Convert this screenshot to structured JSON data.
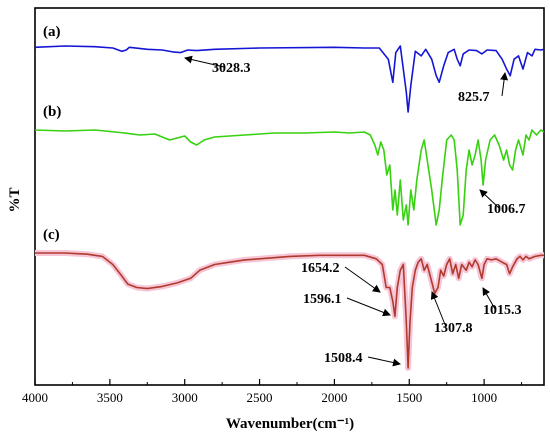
{
  "chart_data": {
    "type": "line",
    "xlabel": "Wavenumber(cm⁻¹)",
    "ylabel": "%T",
    "xlim": [
      4000,
      600
    ],
    "x_reversed": true,
    "x_ticks": [
      4000,
      3500,
      3000,
      2500,
      2000,
      1500,
      1000
    ],
    "grid": false,
    "legend": "none",
    "series": [
      {
        "label": "(a)",
        "color": "#1515d6",
        "annotations": [
          {
            "text": "3028.3",
            "x": 3028.3
          },
          {
            "text": "825.7",
            "x": 825.7
          }
        ],
        "points": [
          [
            4000,
            0.02
          ],
          [
            3800,
            0.0
          ],
          [
            3600,
            0.01
          ],
          [
            3480,
            0.03
          ],
          [
            3420,
            0.08
          ],
          [
            3390,
            0.06
          ],
          [
            3370,
            0.02
          ],
          [
            3250,
            0.05
          ],
          [
            3150,
            0.06
          ],
          [
            3080,
            0.09
          ],
          [
            3028,
            0.1
          ],
          [
            2980,
            0.06
          ],
          [
            2920,
            0.07
          ],
          [
            2800,
            0.05
          ],
          [
            2500,
            0.03
          ],
          [
            2000,
            0.02
          ],
          [
            1800,
            0.03
          ],
          [
            1700,
            0.03
          ],
          [
            1640,
            0.2
          ],
          [
            1610,
            0.55
          ],
          [
            1590,
            0.1
          ],
          [
            1560,
            0.0
          ],
          [
            1520,
            0.7
          ],
          [
            1508,
            1.0
          ],
          [
            1490,
            0.6
          ],
          [
            1460,
            0.08
          ],
          [
            1420,
            0.15
          ],
          [
            1390,
            0.05
          ],
          [
            1350,
            0.2
          ],
          [
            1320,
            0.45
          ],
          [
            1300,
            0.55
          ],
          [
            1270,
            0.3
          ],
          [
            1240,
            0.1
          ],
          [
            1200,
            0.05
          ],
          [
            1180,
            0.2
          ],
          [
            1160,
            0.3
          ],
          [
            1140,
            0.12
          ],
          [
            1100,
            0.06
          ],
          [
            1050,
            0.07
          ],
          [
            1015,
            0.12
          ],
          [
            980,
            0.06
          ],
          [
            920,
            0.07
          ],
          [
            880,
            0.2
          ],
          [
            850,
            0.35
          ],
          [
            826,
            0.45
          ],
          [
            800,
            0.2
          ],
          [
            770,
            0.15
          ],
          [
            740,
            0.35
          ],
          [
            710,
            0.1
          ],
          [
            680,
            0.15
          ],
          [
            660,
            0.05
          ],
          [
            620,
            0.06
          ],
          [
            600,
            0.05
          ]
        ]
      },
      {
        "label": "(b)",
        "color": "#36d10f",
        "annotations": [
          {
            "text": "1006.7",
            "x": 1006.7
          }
        ],
        "points": [
          [
            4000,
            0.0
          ],
          [
            3800,
            0.01
          ],
          [
            3600,
            0.0
          ],
          [
            3400,
            0.03
          ],
          [
            3300,
            0.05
          ],
          [
            3200,
            0.04
          ],
          [
            3100,
            0.1
          ],
          [
            3050,
            0.08
          ],
          [
            3000,
            0.06
          ],
          [
            2960,
            0.12
          ],
          [
            2920,
            0.15
          ],
          [
            2870,
            0.1
          ],
          [
            2800,
            0.07
          ],
          [
            2700,
            0.06
          ],
          [
            2600,
            0.05
          ],
          [
            2500,
            0.04
          ],
          [
            2400,
            0.03
          ],
          [
            2200,
            0.03
          ],
          [
            2000,
            0.02
          ],
          [
            1900,
            0.03
          ],
          [
            1800,
            0.02
          ],
          [
            1760,
            0.05
          ],
          [
            1730,
            0.15
          ],
          [
            1710,
            0.25
          ],
          [
            1690,
            0.12
          ],
          [
            1670,
            0.2
          ],
          [
            1650,
            0.45
          ],
          [
            1630,
            0.35
          ],
          [
            1610,
            0.8
          ],
          [
            1595,
            0.6
          ],
          [
            1580,
            0.85
          ],
          [
            1560,
            0.5
          ],
          [
            1540,
            0.9
          ],
          [
            1520,
            0.75
          ],
          [
            1508,
            0.95
          ],
          [
            1490,
            0.6
          ],
          [
            1470,
            0.8
          ],
          [
            1450,
            0.5
          ],
          [
            1420,
            0.2
          ],
          [
            1400,
            0.1
          ],
          [
            1380,
            0.3
          ],
          [
            1350,
            0.6
          ],
          [
            1320,
            0.95
          ],
          [
            1300,
            0.8
          ],
          [
            1280,
            0.5
          ],
          [
            1250,
            0.1
          ],
          [
            1220,
            0.05
          ],
          [
            1200,
            0.1
          ],
          [
            1180,
            0.4
          ],
          [
            1160,
            0.95
          ],
          [
            1140,
            0.85
          ],
          [
            1120,
            0.4
          ],
          [
            1100,
            0.2
          ],
          [
            1080,
            0.35
          ],
          [
            1060,
            0.25
          ],
          [
            1040,
            0.1
          ],
          [
            1020,
            0.3
          ],
          [
            1007,
            0.55
          ],
          [
            990,
            0.3
          ],
          [
            960,
            0.1
          ],
          [
            930,
            0.05
          ],
          [
            900,
            0.15
          ],
          [
            870,
            0.3
          ],
          [
            850,
            0.2
          ],
          [
            830,
            0.35
          ],
          [
            810,
            0.4
          ],
          [
            790,
            0.2
          ],
          [
            770,
            0.1
          ],
          [
            740,
            0.25
          ],
          [
            720,
            0.05
          ],
          [
            700,
            0.1
          ],
          [
            680,
            0.0
          ],
          [
            650,
            0.05
          ],
          [
            620,
            0.0
          ],
          [
            600,
            0.02
          ]
        ]
      },
      {
        "label": "(c)",
        "color": "#b03a2e",
        "shadow_color": "#f7c6d6",
        "annotations": [
          {
            "text": "1654.2",
            "x": 1654.2
          },
          {
            "text": "1596.1",
            "x": 1596.1
          },
          {
            "text": "1307.8",
            "x": 1307.8
          },
          {
            "text": "1015.3",
            "x": 1015.3
          },
          {
            "text": "1508.4",
            "x": 1508.4
          }
        ],
        "points": [
          [
            4000,
            0.0
          ],
          [
            3800,
            0.0
          ],
          [
            3650,
            0.01
          ],
          [
            3550,
            0.03
          ],
          [
            3480,
            0.1
          ],
          [
            3420,
            0.2
          ],
          [
            3380,
            0.27
          ],
          [
            3320,
            0.3
          ],
          [
            3250,
            0.31
          ],
          [
            3150,
            0.29
          ],
          [
            3050,
            0.26
          ],
          [
            2960,
            0.22
          ],
          [
            2900,
            0.15
          ],
          [
            2800,
            0.1
          ],
          [
            2700,
            0.08
          ],
          [
            2600,
            0.06
          ],
          [
            2500,
            0.05
          ],
          [
            2300,
            0.03
          ],
          [
            2100,
            0.02
          ],
          [
            1900,
            0.02
          ],
          [
            1800,
            0.02
          ],
          [
            1720,
            0.05
          ],
          [
            1680,
            0.1
          ],
          [
            1654,
            0.3
          ],
          [
            1630,
            0.3
          ],
          [
            1610,
            0.42
          ],
          [
            1596,
            0.55
          ],
          [
            1580,
            0.3
          ],
          [
            1560,
            0.15
          ],
          [
            1540,
            0.1
          ],
          [
            1520,
            0.6
          ],
          [
            1508,
            1.0
          ],
          [
            1495,
            0.6
          ],
          [
            1480,
            0.3
          ],
          [
            1460,
            0.15
          ],
          [
            1440,
            0.08
          ],
          [
            1420,
            0.05
          ],
          [
            1400,
            0.15
          ],
          [
            1380,
            0.1
          ],
          [
            1360,
            0.2
          ],
          [
            1330,
            0.35
          ],
          [
            1308,
            0.3
          ],
          [
            1290,
            0.15
          ],
          [
            1270,
            0.2
          ],
          [
            1250,
            0.1
          ],
          [
            1230,
            0.05
          ],
          [
            1210,
            0.18
          ],
          [
            1190,
            0.1
          ],
          [
            1170,
            0.22
          ],
          [
            1150,
            0.1
          ],
          [
            1120,
            0.15
          ],
          [
            1100,
            0.08
          ],
          [
            1080,
            0.12
          ],
          [
            1060,
            0.06
          ],
          [
            1040,
            0.1
          ],
          [
            1015,
            0.22
          ],
          [
            1000,
            0.1
          ],
          [
            980,
            0.05
          ],
          [
            950,
            0.06
          ],
          [
            920,
            0.05
          ],
          [
            880,
            0.08
          ],
          [
            850,
            0.1
          ],
          [
            830,
            0.18
          ],
          [
            810,
            0.12
          ],
          [
            780,
            0.05
          ],
          [
            760,
            0.03
          ],
          [
            740,
            0.06
          ],
          [
            720,
            0.03
          ],
          [
            700,
            0.05
          ],
          [
            660,
            0.03
          ],
          [
            620,
            0.02
          ],
          [
            600,
            0.02
          ]
        ]
      }
    ]
  }
}
